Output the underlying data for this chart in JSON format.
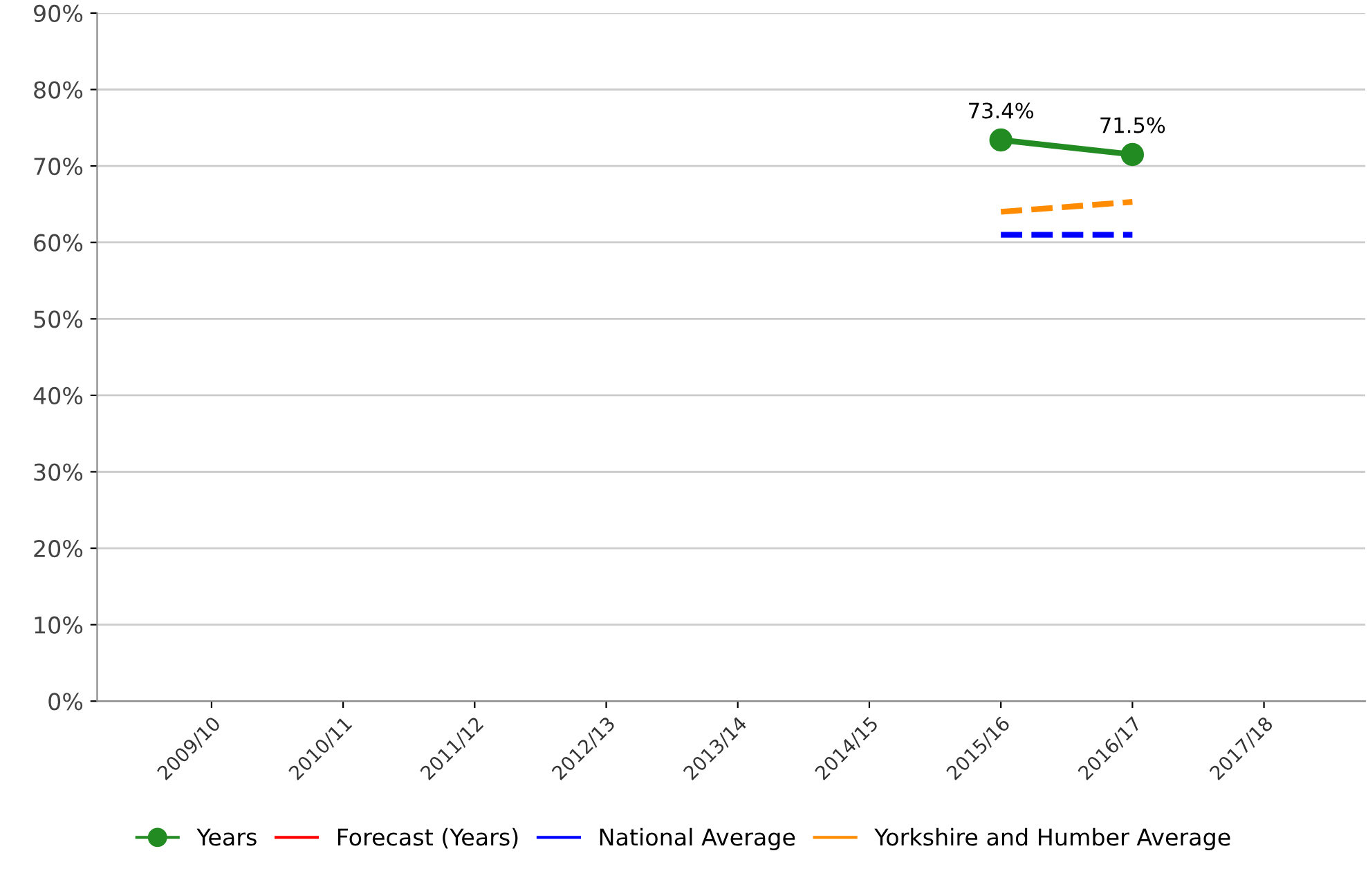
{
  "chart_data": {
    "type": "line",
    "categories": [
      "2009/10",
      "2010/11",
      "2011/12",
      "2012/13",
      "2013/14",
      "2014/15",
      "2015/16",
      "2016/17",
      "2017/18"
    ],
    "series": [
      {
        "name": "Years",
        "color": "#228b22",
        "values": [
          null,
          null,
          null,
          null,
          null,
          null,
          73.4,
          71.5,
          null
        ],
        "marker": "circle",
        "value_labels": [
          null,
          null,
          null,
          null,
          null,
          null,
          "73.4%",
          "71.5%",
          null
        ]
      },
      {
        "name": "Forecast (Years)",
        "color": "#ff0000",
        "values": [
          null,
          null,
          null,
          null,
          null,
          null,
          null,
          null,
          null
        ],
        "marker": "none"
      },
      {
        "name": "National Average",
        "color": "#0000ff",
        "values": [
          null,
          null,
          null,
          null,
          null,
          null,
          61.0,
          61.0,
          null
        ],
        "marker": "none",
        "line_style": "dashed"
      },
      {
        "name": "Yorkshire and Humber Average",
        "color": "#ff8c00",
        "values": [
          null,
          null,
          null,
          null,
          null,
          null,
          64.0,
          65.3,
          null
        ],
        "marker": "none",
        "line_style": "dashed"
      }
    ],
    "ylim": [
      0,
      90
    ],
    "yticks": [
      {
        "value": 0,
        "label": "0%"
      },
      {
        "value": 10,
        "label": "10%"
      },
      {
        "value": 20,
        "label": "20%"
      },
      {
        "value": 30,
        "label": "30%"
      },
      {
        "value": 40,
        "label": "40%"
      },
      {
        "value": 50,
        "label": "50%"
      },
      {
        "value": 60,
        "label": "60%"
      },
      {
        "value": 70,
        "label": "70%"
      },
      {
        "value": 80,
        "label": "80%"
      },
      {
        "value": 90,
        "label": "90%"
      }
    ],
    "grid": "y",
    "legend": "bottom"
  }
}
